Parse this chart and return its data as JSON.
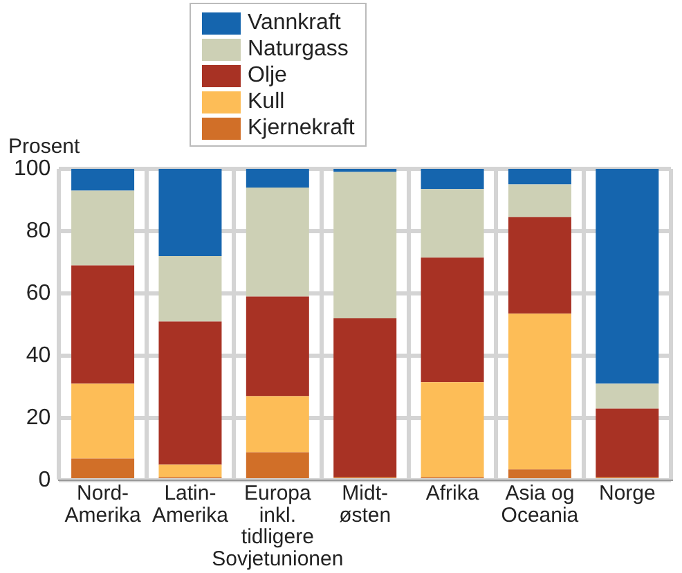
{
  "chart_data": {
    "type": "bar",
    "stacked": true,
    "ylabel": "Prosent",
    "categories": [
      "Nord-\nAmerika",
      "Latin-\nAmerika",
      "Europa\ninkl.\ntidligere\nSovjetunionen",
      "Midt-\nøsten",
      "Afrika",
      "Asia og\nOceania",
      "Norge"
    ],
    "series": [
      {
        "name": "Kjernekraft",
        "color": "#d16f28",
        "values": [
          7,
          1,
          9,
          1,
          1,
          3.5,
          1
        ]
      },
      {
        "name": "Kull",
        "color": "#fdbd57",
        "values": [
          24,
          4,
          18,
          0,
          30.5,
          50,
          0
        ]
      },
      {
        "name": "Olje",
        "color": "#a83224",
        "values": [
          38,
          46,
          32,
          51,
          40,
          31,
          22
        ]
      },
      {
        "name": "Naturgass",
        "color": "#cdd0b5",
        "values": [
          24,
          21,
          35,
          47,
          22,
          10.5,
          8
        ]
      },
      {
        "name": "Vannkraft",
        "color": "#1565ae",
        "values": [
          7,
          28,
          6,
          1,
          6.5,
          5,
          69
        ]
      }
    ],
    "ylim": [
      0,
      100
    ],
    "yticks": [
      0,
      20,
      40,
      60,
      80,
      100
    ],
    "grid": true,
    "legend": "top"
  }
}
